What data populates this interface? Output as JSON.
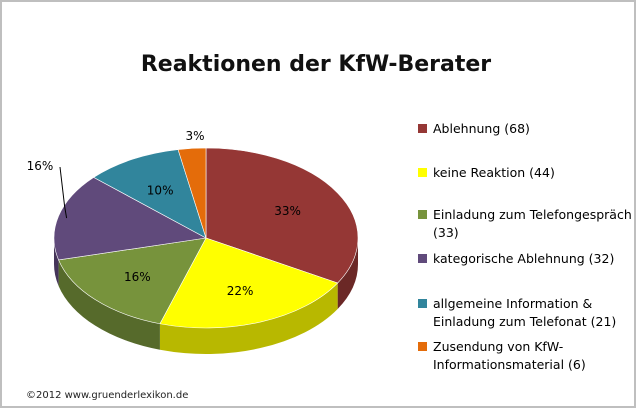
{
  "chart_data": {
    "type": "pie",
    "title": "Reaktionen der KfW-Berater",
    "legend_position": "right",
    "slices": [
      {
        "label": "Ablehnung (68)",
        "value": 68,
        "percent_label": "33%",
        "color": "#953735"
      },
      {
        "label": "keine Reaktion (44)",
        "value": 44,
        "percent_label": "22%",
        "color": "#FFFF00"
      },
      {
        "label": "Einladung zum Telefongespräch (33)",
        "value": 33,
        "percent_label": "16%",
        "color": "#77933C"
      },
      {
        "label": "kategorische Ablehnung (32)",
        "value": 32,
        "percent_label": "16%",
        "color": "#604A7B"
      },
      {
        "label": "allgemeine Information & Einladung zum Telefonat (21)",
        "value": 21,
        "percent_label": "10%",
        "color": "#31859C"
      },
      {
        "label": "Zusendung von KfW-Informationsmaterial (6)",
        "value": 6,
        "percent_label": "3%",
        "color": "#E46C0A"
      }
    ]
  },
  "footer": {
    "credit": "©2012 www.gruenderlexikon.de"
  }
}
